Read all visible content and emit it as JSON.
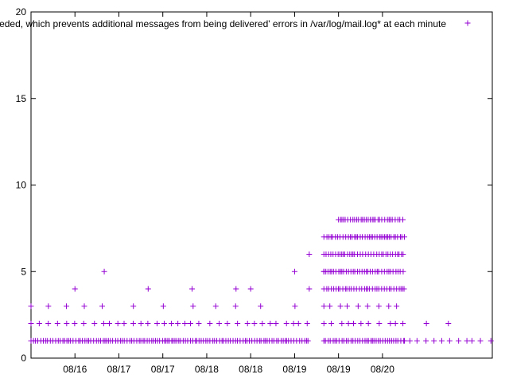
{
  "chart_data": {
    "type": "scatter",
    "title": "",
    "xlabel": "",
    "ylabel": "",
    "legend": {
      "label": "'Message size limit exceeded, which prevents additional messages from being delivered' errors in /var/log/mail.log* at each minute",
      "placement": "top-right"
    },
    "marker_color": "#9400d3",
    "marker": "plus",
    "grid": false,
    "x_unit": "date (MM/DD)",
    "xlim": [
      "08/15 12:00",
      "08/20 18:00"
    ],
    "ylim": [
      0,
      20
    ],
    "yticks": [
      0,
      5,
      10,
      15,
      20
    ],
    "xticks": [
      "08/16",
      "08/17",
      "08/17",
      "08/18",
      "08/18",
      "08/19",
      "08/19",
      "08/20"
    ],
    "series": [
      {
        "name": "'Message size limit exceeded, which prevents additional messages from being delivered' errors in /var/log/mail.log* at each minute",
        "description_of_pattern": "approximate per-minute counts read from the scatter",
        "points": [
          {
            "x": "08/15 12:00–08/18 16:00",
            "y": 1,
            "density": "dense"
          },
          {
            "x": "08/15 12:00–08/18 16:00",
            "y": 2,
            "density": "frequent"
          },
          {
            "x": "08/15 12:00–08/18 16:00",
            "y": 3,
            "density": "sparse"
          },
          {
            "x": "08/16 00:00",
            "y": 4
          },
          {
            "x": "08/16 08:00",
            "y": 5
          },
          {
            "x": "08/16 20:00",
            "y": 4
          },
          {
            "x": "08/17 08:00",
            "y": 4
          },
          {
            "x": "08/17 20:00",
            "y": 4
          },
          {
            "x": "08/18 00:00",
            "y": 4
          },
          {
            "x": "08/18 12:00",
            "y": 5
          },
          {
            "x": "08/18 16:00",
            "y": 4
          },
          {
            "x": "08/18 16:00",
            "y": 6
          },
          {
            "x": "08/18 20:00",
            "y": 5
          },
          {
            "x": "08/18 20:00–08/19 18:00",
            "y": 1,
            "density": "dense"
          },
          {
            "x": "08/18 20:00–08/19 18:00",
            "y": 2,
            "density": "frequent"
          },
          {
            "x": "08/18 20:00–08/19 18:00",
            "y": 3,
            "density": "frequent"
          },
          {
            "x": "08/18 20:00–08/19 18:00",
            "y": 4,
            "density": "dense"
          },
          {
            "x": "08/18 20:00–08/19 18:00",
            "y": 5,
            "density": "dense"
          },
          {
            "x": "08/18 20:00–08/19 18:00",
            "y": 6,
            "density": "dense"
          },
          {
            "x": "08/18 20:00–08/19 18:00",
            "y": 7,
            "density": "dense"
          },
          {
            "x": "08/19 00:00–08/19 18:00",
            "y": 8,
            "density": "dense"
          },
          {
            "x": "08/19 18:00–08/20 18:00",
            "y": 1,
            "density": "frequent"
          },
          {
            "x": "08/20 00:00",
            "y": 2
          },
          {
            "x": "08/20 06:00",
            "y": 2
          }
        ]
      }
    ]
  }
}
